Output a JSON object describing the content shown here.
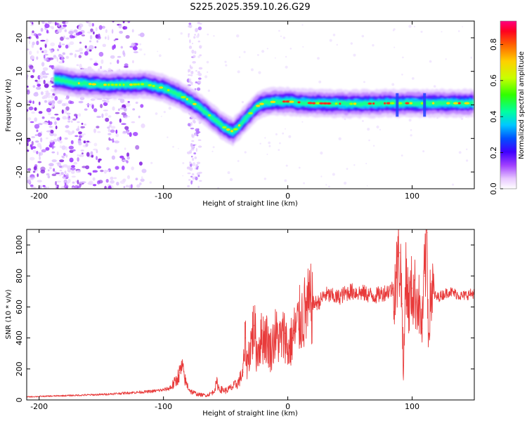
{
  "title": "S225.2025.359.10.26.G29",
  "chart_data": [
    {
      "type": "heatmap",
      "name": "spectrogram",
      "xlabel": "Height of straight line (km)",
      "ylabel": "Frequency (Hz)",
      "xlim": [
        -210,
        150
      ],
      "ylim": [
        -25,
        25
      ],
      "x_ticks": [
        -200,
        -100,
        0,
        100
      ],
      "y_ticks": [
        -20,
        -10,
        0,
        10,
        20
      ],
      "ridge": {
        "x": [
          -185,
          -170,
          -150,
          -130,
          -115,
          -100,
          -90,
          -80,
          -70,
          -60,
          -50,
          -44,
          -40,
          -35,
          -30,
          -25,
          -20,
          -10,
          0,
          20,
          50,
          80,
          100,
          120,
          150
        ],
        "y": [
          7.5,
          6.5,
          6.0,
          6.0,
          6.2,
          5.0,
          3.5,
          1.5,
          -1.0,
          -4.0,
          -7.0,
          -8.0,
          -6.5,
          -4.5,
          -2.5,
          -0.5,
          0.5,
          1.0,
          1.0,
          0.5,
          0.3,
          0.5,
          0.5,
          0.5,
          0.5
        ]
      },
      "colorbar": {
        "label": "Normalized spectral amplitude",
        "range": [
          0.0,
          0.93
        ],
        "ticks": [
          "0.0",
          "0.2",
          "0.4",
          "0.6",
          "0.8"
        ],
        "tick_values": [
          0.0,
          0.2,
          0.4,
          0.6,
          0.8
        ]
      }
    },
    {
      "type": "line",
      "name": "snr",
      "xlabel": "Height of straight line (km)",
      "ylabel": "SNR (10 * v/v)",
      "xlim": [
        -210,
        150
      ],
      "ylim": [
        0,
        1100
      ],
      "x_ticks": [
        -200,
        -100,
        0,
        100
      ],
      "y_ticks": [
        0,
        200,
        400,
        600,
        800,
        1000
      ],
      "color": "#e83a3a",
      "series": [
        {
          "name": "SNR",
          "x": [
            -210,
            -190,
            -170,
            -150,
            -130,
            -110,
            -100,
            -95,
            -90,
            -87,
            -85,
            -82,
            -78,
            -72,
            -65,
            -60,
            -57,
            -55,
            -50,
            -45,
            -40,
            -36,
            -34,
            -33,
            -30,
            -27,
            -25,
            -22,
            -18,
            -14,
            -10,
            -6,
            -2,
            0,
            5,
            10,
            15,
            20,
            25,
            30,
            40,
            50,
            60,
            70,
            80,
            85,
            88,
            90,
            92,
            93,
            95,
            97,
            100,
            105,
            108,
            110,
            112,
            113,
            115,
            120,
            130,
            140,
            150
          ],
          "y": [
            20,
            25,
            30,
            35,
            45,
            55,
            65,
            75,
            120,
            175,
            210,
            110,
            55,
            35,
            30,
            50,
            110,
            70,
            60,
            80,
            110,
            180,
            400,
            230,
            350,
            480,
            300,
            390,
            420,
            320,
            420,
            380,
            430,
            310,
            430,
            520,
            580,
            620,
            630,
            680,
            660,
            700,
            690,
            670,
            700,
            720,
            820,
            950,
            620,
            130,
            880,
            600,
            720,
            640,
            460,
            800,
            1080,
            420,
            700,
            660,
            700,
            670,
            690
          ]
        }
      ]
    }
  ],
  "colors": {
    "line": "#e83a3a",
    "axis": "#000000"
  }
}
